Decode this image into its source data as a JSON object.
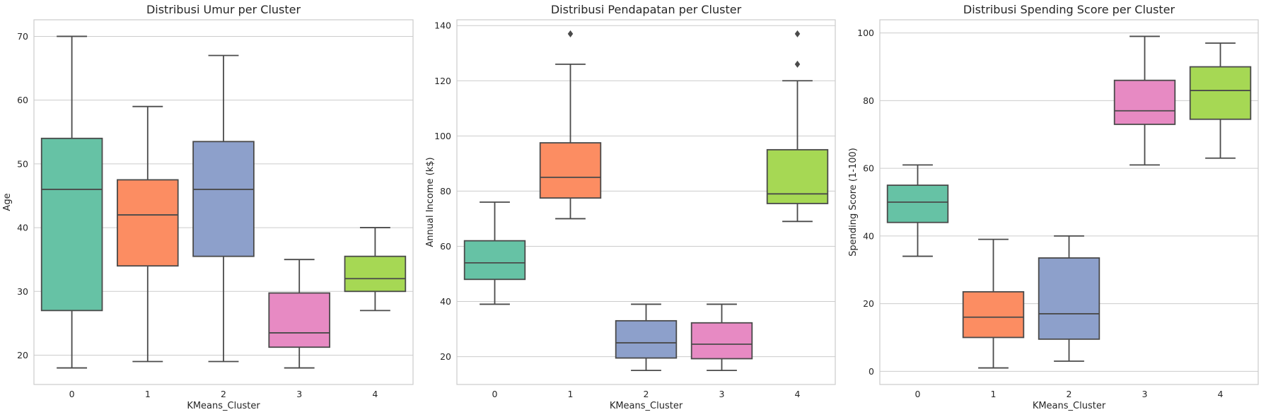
{
  "figure": {
    "background": "#ffffff",
    "grid_color": "#cccccc",
    "spine_color": "#cccccc",
    "line_color": "#4a4a4a",
    "palette": [
      "#66c2a5",
      "#fc8d62",
      "#8da0cb",
      "#e78ac3",
      "#a6d854"
    ]
  },
  "chart_data": [
    {
      "type": "box",
      "title": "Distribusi Umur per Cluster",
      "xlabel": "KMeans_Cluster",
      "ylabel": "Age",
      "categories": [
        "0",
        "1",
        "2",
        "3",
        "4"
      ],
      "ylim": [
        15.4,
        72.6
      ],
      "yticks": [
        20,
        30,
        40,
        50,
        60,
        70
      ],
      "grid": "horizontal",
      "boxes": [
        {
          "whislo": 18,
          "q1": 27,
          "med": 46,
          "q3": 54,
          "whishi": 70,
          "fliers": []
        },
        {
          "whislo": 19,
          "q1": 34,
          "med": 42,
          "q3": 47.5,
          "whishi": 59,
          "fliers": []
        },
        {
          "whislo": 19,
          "q1": 35.5,
          "med": 46,
          "q3": 53.5,
          "whishi": 67,
          "fliers": []
        },
        {
          "whislo": 18,
          "q1": 21.25,
          "med": 23.5,
          "q3": 29.75,
          "whishi": 35,
          "fliers": []
        },
        {
          "whislo": 27,
          "q1": 30,
          "med": 32,
          "q3": 35.5,
          "whishi": 40,
          "fliers": []
        }
      ]
    },
    {
      "type": "box",
      "title": "Distribusi Pendapatan per Cluster",
      "xlabel": "KMeans_Cluster",
      "ylabel": "Annual Income (k$)",
      "categories": [
        "0",
        "1",
        "2",
        "3",
        "4"
      ],
      "ylim": [
        9.9,
        142.1
      ],
      "yticks": [
        20,
        40,
        60,
        80,
        100,
        120,
        140
      ],
      "grid": "horizontal",
      "boxes": [
        {
          "whislo": 39,
          "q1": 48,
          "med": 54,
          "q3": 62,
          "whishi": 76,
          "fliers": []
        },
        {
          "whislo": 70,
          "q1": 77.5,
          "med": 85,
          "q3": 97.5,
          "whishi": 126,
          "fliers": [
            137
          ]
        },
        {
          "whislo": 15,
          "q1": 19.5,
          "med": 25,
          "q3": 33,
          "whishi": 39,
          "fliers": []
        },
        {
          "whislo": 15,
          "q1": 19.25,
          "med": 24.5,
          "q3": 32.25,
          "whishi": 39,
          "fliers": []
        },
        {
          "whislo": 69,
          "q1": 75.5,
          "med": 79,
          "q3": 95,
          "whishi": 120,
          "fliers": [
            126,
            137
          ]
        }
      ]
    },
    {
      "type": "box",
      "title": "Distribusi Spending Score per Cluster",
      "xlabel": "KMeans_Cluster",
      "ylabel": "Spending Score (1-100)",
      "categories": [
        "0",
        "1",
        "2",
        "3",
        "4"
      ],
      "ylim": [
        -3.9,
        103.9
      ],
      "yticks": [
        0,
        20,
        40,
        60,
        80,
        100
      ],
      "grid": "horizontal",
      "boxes": [
        {
          "whislo": 34,
          "q1": 44,
          "med": 50,
          "q3": 55,
          "whishi": 61,
          "fliers": []
        },
        {
          "whislo": 1,
          "q1": 10,
          "med": 16,
          "q3": 23.5,
          "whishi": 39,
          "fliers": []
        },
        {
          "whislo": 3,
          "q1": 9.5,
          "med": 17,
          "q3": 33.5,
          "whishi": 40,
          "fliers": []
        },
        {
          "whislo": 61,
          "q1": 73,
          "med": 77,
          "q3": 86,
          "whishi": 99,
          "fliers": []
        },
        {
          "whislo": 63,
          "q1": 74.5,
          "med": 83,
          "q3": 90,
          "whishi": 97,
          "fliers": []
        }
      ]
    }
  ]
}
